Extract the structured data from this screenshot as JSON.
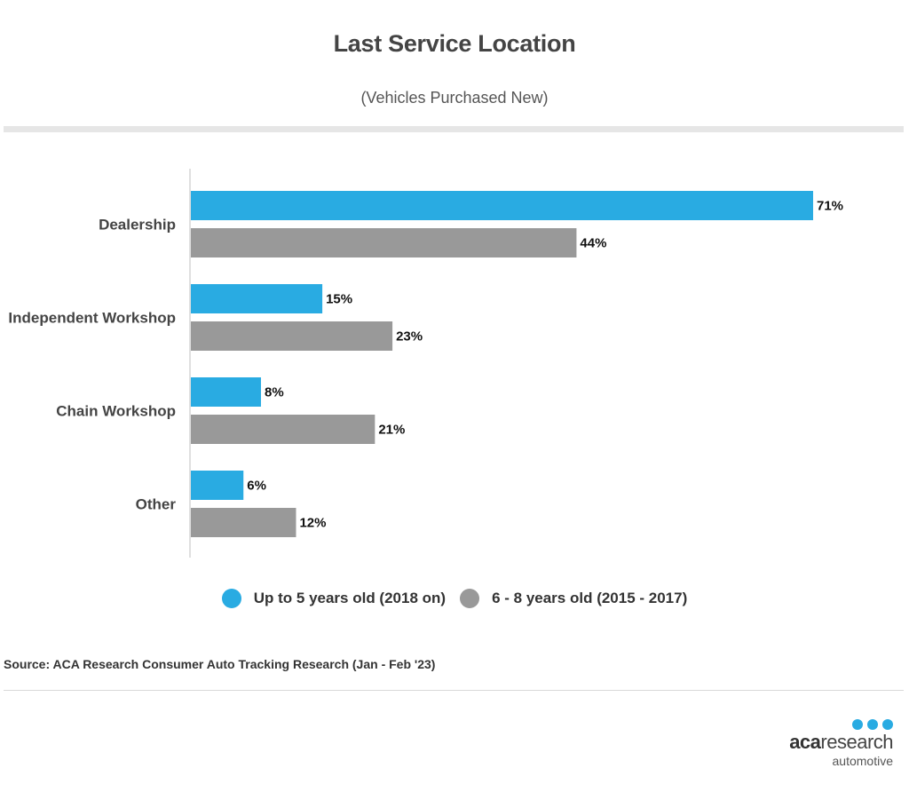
{
  "header": {
    "title": "Last Service Location",
    "subtitle": "(Vehicles Purchased New)"
  },
  "chart_data": {
    "type": "bar",
    "orientation": "horizontal",
    "title": "Last Service Location",
    "subtitle": "(Vehicles Purchased New)",
    "categories": [
      "Dealership",
      "Independent Workshop",
      "Chain Workshop",
      "Other"
    ],
    "series": [
      {
        "name": "Up to 5 years old (2018 on)",
        "values": [
          71,
          15,
          8,
          6
        ],
        "color": "#29abe2"
      },
      {
        "name": "6 - 8 years old (2015 - 2017)",
        "values": [
          44,
          23,
          21,
          12
        ],
        "color": "#999999"
      }
    ],
    "value_suffix": "%",
    "xlim": [
      0,
      71
    ],
    "grid": false,
    "legend_position": "bottom"
  },
  "legend": [
    {
      "label": "Up to 5 years old (2018 on)",
      "color": "#29abe2"
    },
    {
      "label": "6 - 8 years old (2015 - 2017)",
      "color": "#999999"
    }
  ],
  "footer": {
    "source": "Source: ACA Research Consumer Auto Tracking Research (Jan - Feb '23)",
    "logo_bold": "aca",
    "logo_light": "research",
    "logo_sub": "automotive"
  }
}
